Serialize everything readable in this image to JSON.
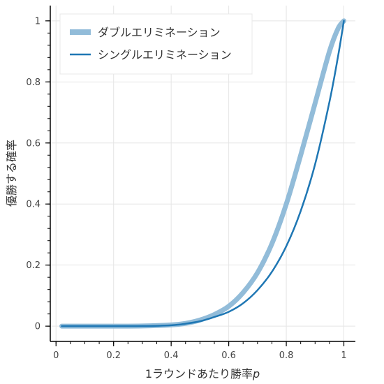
{
  "chart_data": {
    "type": "line",
    "title": "",
    "xlabel_prefix": "1ラウンドあたり勝率",
    "xlabel_var": "p",
    "ylabel": "優勝する確率",
    "xlim": [
      -0.02,
      1.04
    ],
    "ylim": [
      -0.05,
      1.05
    ],
    "x_ticks": [
      0,
      0.2,
      0.4,
      0.6,
      0.8,
      1
    ],
    "x_tick_labels": [
      "0",
      "0.2",
      "0.4",
      "0.6",
      "0.8",
      "1"
    ],
    "y_ticks": [
      0,
      0.2,
      0.4,
      0.6,
      0.8,
      1
    ],
    "y_tick_labels": [
      "0",
      "0.2",
      "0.4",
      "0.6",
      "0.8",
      "1"
    ],
    "grid": true,
    "legend_position": "top-left",
    "series": [
      {
        "name": "ダブルエリミネーション",
        "color": "#92bcd9",
        "x": [
          0.02,
          0.1,
          0.2,
          0.3,
          0.4,
          0.45,
          0.5,
          0.55,
          0.6,
          0.65,
          0.7,
          0.75,
          0.8,
          0.85,
          0.9,
          0.95,
          0.98,
          1.0
        ],
        "y": [
          0.0,
          0.0,
          0.0,
          0.0005,
          0.004,
          0.009,
          0.02,
          0.038,
          0.065,
          0.11,
          0.175,
          0.27,
          0.4,
          0.56,
          0.73,
          0.9,
          0.975,
          1.0
        ]
      },
      {
        "name": "シングルエリミネーション",
        "color": "#1f77b4",
        "x": [
          0.02,
          0.1,
          0.2,
          0.3,
          0.4,
          0.45,
          0.5,
          0.55,
          0.6,
          0.65,
          0.7,
          0.75,
          0.8,
          0.85,
          0.9,
          0.95,
          0.98,
          1.0
        ],
        "y": [
          0.0,
          0.0,
          0.0,
          0.0002,
          0.003,
          0.008,
          0.016,
          0.03,
          0.047,
          0.075,
          0.118,
          0.178,
          0.262,
          0.377,
          0.53,
          0.735,
          0.885,
          1.0
        ]
      }
    ]
  }
}
